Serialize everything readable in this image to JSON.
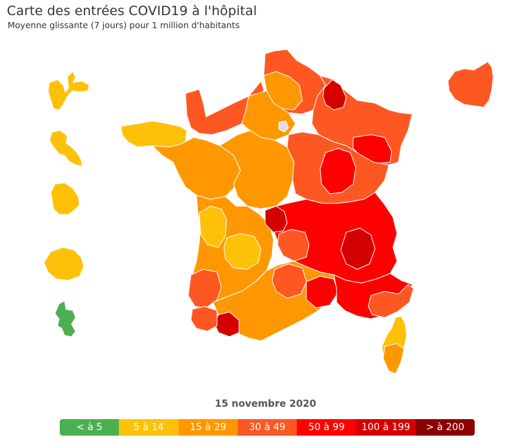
{
  "title": "Carte des entrées COVID19 à l'hôpital",
  "subtitle": "Moyenne glissante (7 jours) pour 1 million d'habitants",
  "date": "15 novembre 2020",
  "colors": {
    "c0": "#4caf50",
    "c1": "#ffc107",
    "c2": "#ff9800",
    "c3": "#ff5722",
    "c4": "#ff0000",
    "c5": "#d50000",
    "c6": "#8b0000",
    "border": "#ffffff",
    "nodata": "#dddddd"
  },
  "legend": [
    {
      "label": "< à 5",
      "color": "#4caf50"
    },
    {
      "label": "5 à 14",
      "color": "#ffc107"
    },
    {
      "label": "15 à 29",
      "color": "#ff9800"
    },
    {
      "label": "30 à 49",
      "color": "#ff5722"
    },
    {
      "label": "50 à 99",
      "color": "#ff0000"
    },
    {
      "label": "100 à 199",
      "color": "#d50000"
    },
    {
      "label": "> à 200",
      "color": "#8b0000"
    }
  ]
}
